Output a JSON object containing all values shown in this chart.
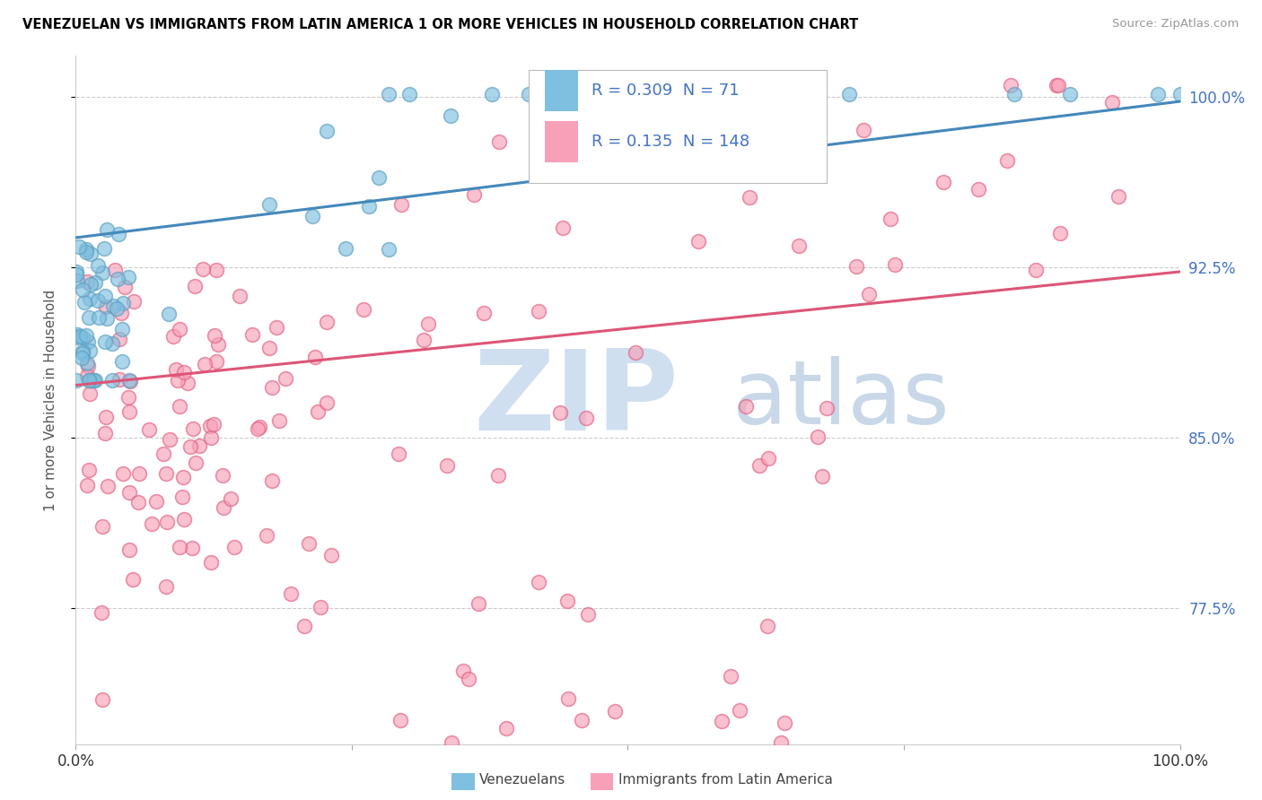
{
  "title": "VENEZUELAN VS IMMIGRANTS FROM LATIN AMERICA 1 OR MORE VEHICLES IN HOUSEHOLD CORRELATION CHART",
  "source": "Source: ZipAtlas.com",
  "ylabel": "1 or more Vehicles in Household",
  "xlim": [
    0.0,
    1.0
  ],
  "ylim": [
    0.715,
    1.018
  ],
  "ytick_vals": [
    0.775,
    0.85,
    0.925,
    1.0
  ],
  "ytick_labels": [
    "77.5%",
    "85.0%",
    "92.5%",
    "100.0%"
  ],
  "legend_r1": "0.309",
  "legend_n1": "71",
  "legend_r2": "0.135",
  "legend_n2": "148",
  "blue_color": "#7fbfdf",
  "blue_edge_color": "#5a9fc0",
  "pink_color": "#f8a0b8",
  "pink_edge_color": "#e06080",
  "blue_line_color": "#4488bb",
  "pink_line_color": "#dd5577",
  "tick_label_color": "#4472c4",
  "watermark_color": "#d0dff0",
  "watermark_color2": "#c8d8e8"
}
